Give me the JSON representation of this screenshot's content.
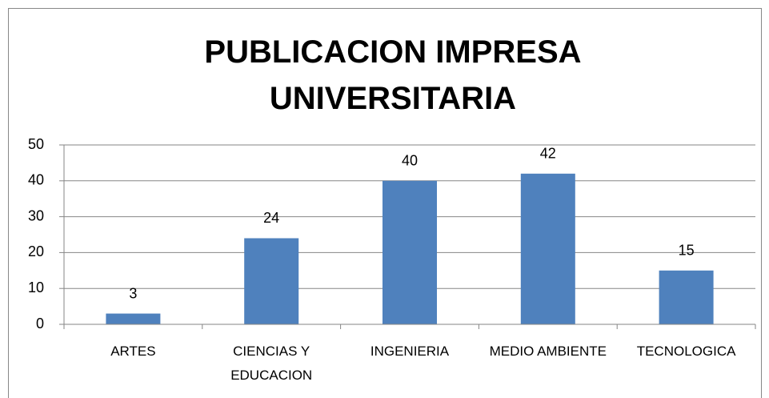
{
  "chart_data": {
    "type": "bar",
    "title": "PUBLICACION IMPRESA UNIVERSITARIA",
    "categories": [
      "ARTES",
      "CIENCIAS Y EDUCACION",
      "INGENIERIA",
      "MEDIO AMBIENTE",
      "TECNOLOGICA"
    ],
    "values": [
      3,
      24,
      40,
      42,
      15
    ],
    "color": "#4f81bd",
    "ylim": [
      0,
      50
    ],
    "yticks": [
      0,
      10,
      20,
      30,
      40,
      50
    ],
    "grid": true
  }
}
